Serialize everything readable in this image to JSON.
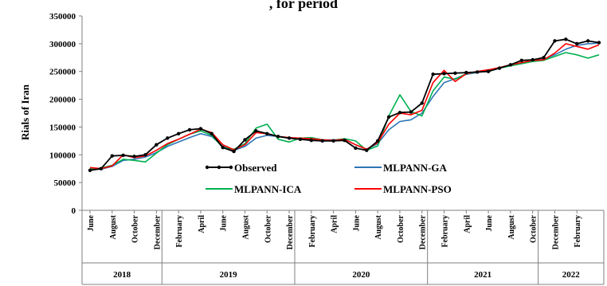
{
  "chart_data": {
    "type": "line",
    "title": "",
    "title_fragment": ", for period",
    "xlabel": "",
    "ylabel": "Rials of Iran",
    "ylim": [
      0,
      350000
    ],
    "yticks": [
      0,
      50000,
      100000,
      150000,
      200000,
      250000,
      300000,
      350000
    ],
    "ytick_labels": [
      "0",
      "50000",
      "100000",
      "150000",
      "200000",
      "250000",
      "300000",
      "350000"
    ],
    "grid": false,
    "legend_position": "inside-center",
    "x_tick_labels": [
      "June",
      "August",
      "October",
      "December",
      "February",
      "April",
      "June",
      "August",
      "October",
      "December",
      "February",
      "April",
      "June",
      "August",
      "October",
      "December",
      "February",
      "April",
      "June",
      "August",
      "October",
      "December",
      "February"
    ],
    "x_tick_index": [
      0,
      2,
      4,
      6,
      8,
      10,
      12,
      14,
      16,
      18,
      20,
      22,
      24,
      26,
      28,
      30,
      32,
      34,
      36,
      38,
      40,
      42,
      44
    ],
    "year_groups": [
      {
        "label": "2018",
        "from": 0,
        "to": 7
      },
      {
        "label": "2019",
        "from": 7,
        "to": 19
      },
      {
        "label": "2020",
        "from": 19,
        "to": 31
      },
      {
        "label": "2021",
        "from": 31,
        "to": 41
      },
      {
        "label": "2022",
        "from": 41,
        "to": 46
      }
    ],
    "series": [
      {
        "name": "Observed",
        "color": "#000000",
        "markers": true,
        "values": [
          72000,
          75000,
          98000,
          99000,
          97000,
          100000,
          118000,
          130000,
          138000,
          145000,
          147000,
          138000,
          113000,
          106000,
          127000,
          143000,
          138000,
          133000,
          130000,
          128000,
          126000,
          125000,
          125000,
          126000,
          112000,
          108000,
          125000,
          168000,
          176000,
          177000,
          193000,
          245000,
          246000,
          247000,
          248000,
          249000,
          250000,
          256000,
          262000,
          270000,
          271000,
          275000,
          305000,
          308000,
          300000,
          305000,
          302000
        ]
      },
      {
        "name": "MLPANN-GA",
        "color": "#2e75b6",
        "markers": false,
        "values": [
          74000,
          74000,
          79000,
          90000,
          92000,
          96000,
          104000,
          115000,
          123000,
          131000,
          138000,
          133000,
          115000,
          108000,
          115000,
          130000,
          135000,
          133000,
          130000,
          129000,
          128000,
          127000,
          127000,
          128000,
          118000,
          110000,
          120000,
          145000,
          160000,
          163000,
          175000,
          205000,
          230000,
          237000,
          245000,
          248000,
          251000,
          256000,
          261000,
          266000,
          270000,
          272000,
          280000,
          290000,
          297000,
          300000,
          301000
        ]
      },
      {
        "name": "MLPANN-ICA",
        "color": "#00b050",
        "markers": false,
        "values": [
          75000,
          76000,
          81000,
          92000,
          90000,
          87000,
          103000,
          118000,
          128000,
          137000,
          143000,
          135000,
          113000,
          110000,
          120000,
          148000,
          155000,
          128000,
          123000,
          130000,
          131000,
          127000,
          126000,
          129000,
          125000,
          108000,
          116000,
          170000,
          208000,
          178000,
          170000,
          215000,
          240000,
          236000,
          246000,
          249000,
          252000,
          256000,
          260000,
          264000,
          268000,
          270000,
          277000,
          284000,
          280000,
          274000,
          280000
        ]
      },
      {
        "name": "MLPANN-PSO",
        "color": "#ff0000",
        "markers": false,
        "values": [
          77000,
          75000,
          80000,
          100000,
          95000,
          98000,
          108000,
          120000,
          128000,
          137000,
          146000,
          140000,
          118000,
          109000,
          118000,
          140000,
          138000,
          133000,
          131000,
          130000,
          129000,
          127000,
          126000,
          128000,
          118000,
          110000,
          122000,
          155000,
          175000,
          172000,
          180000,
          230000,
          252000,
          232000,
          246000,
          250000,
          253000,
          257000,
          262000,
          266000,
          270000,
          271000,
          283000,
          300000,
          295000,
          290000,
          298000
        ]
      }
    ]
  }
}
